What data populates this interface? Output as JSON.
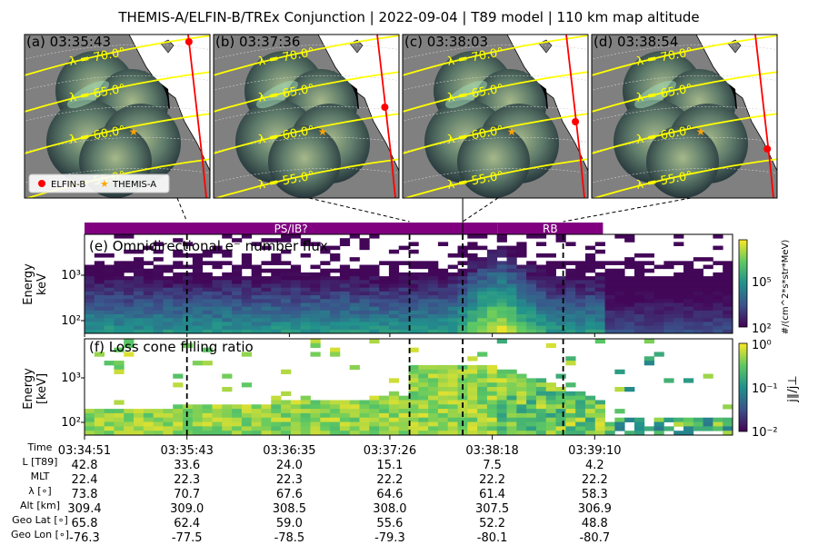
{
  "title": "THEMIS-A/ELFIN-B/TREx Conjunction | 2022-09-04 | T89 model | 110 km map altitude",
  "colors": {
    "purple": "#800080",
    "lat_line": "#ffff00",
    "elfin": "#ff0000",
    "themis": "#ffa500",
    "land": "#ffffff",
    "bg": "#808080"
  },
  "map_panels": [
    {
      "label": "(a) 03:35:43",
      "elfin_y": 0.04,
      "themis": true
    },
    {
      "label": "(b) 03:37:36",
      "elfin_y": 0.4,
      "themis": true
    },
    {
      "label": "(c) 03:38:03",
      "elfin_y": 0.48,
      "themis": true
    },
    {
      "label": "(d) 03:38:54",
      "elfin_y": 0.63,
      "themis": true
    }
  ],
  "lat_labels": [
    "λ = 70.0°",
    "λ = 65.0°",
    "λ = 60.0°",
    "λ = 55.0°"
  ],
  "legend": {
    "elfin": "ELFIN-B",
    "themis": "THEMIS-A"
  },
  "regions": [
    {
      "label": "PS/IB?",
      "start": 0.0,
      "end": 0.637
    },
    {
      "label": "RB",
      "start": 0.637,
      "end": 0.8
    }
  ],
  "panel_e": {
    "title": "(e) Omnidirectional e⁻ number flux",
    "ylabel_line1": "Energy",
    "ylabel_line2": "keV",
    "yticks": [
      "10³",
      "10²"
    ],
    "cbar_ticks": [
      "10⁵",
      "10²"
    ],
    "cbar_label": "#/(cm^2*s*str*MeV)"
  },
  "panel_f": {
    "title": "(f) Loss cone filling ratio",
    "ylabel_line1": "Energy",
    "ylabel_line2": "[keV]",
    "yticks": [
      "10³",
      "10²"
    ],
    "cbar_ticks": [
      "10⁰",
      "10⁻¹",
      "10⁻²"
    ],
    "cbar_label": "j∥/j⊥"
  },
  "vlines": [
    "03:35:43",
    "03:37:36",
    "03:38:03",
    "03:38:54"
  ],
  "table": {
    "row_labels": [
      "Time",
      "L [T89]",
      "MLT",
      "λ [∘]",
      "Alt [km]",
      "Geo Lat [∘]",
      "Geo Lon [∘]"
    ],
    "columns": [
      [
        "03:34:51",
        "42.8",
        "22.4",
        "73.8",
        "309.4",
        "65.8",
        "-76.3"
      ],
      [
        "03:35:43",
        "33.6",
        "22.3",
        "70.7",
        "309.0",
        "62.4",
        "-77.5"
      ],
      [
        "03:36:35",
        "24.0",
        "22.3",
        "67.6",
        "308.5",
        "59.0",
        "-78.5"
      ],
      [
        "03:37:26",
        "15.1",
        "22.2",
        "64.6",
        "308.0",
        "55.6",
        "-79.3"
      ],
      [
        "03:38:18",
        "7.5",
        "22.2",
        "61.4",
        "307.5",
        "52.2",
        "-80.1"
      ],
      [
        "03:39:10",
        "4.2",
        "22.2",
        "58.3",
        "306.9",
        "48.8",
        "-80.7"
      ]
    ]
  },
  "chart_data": {
    "type": "heatmap",
    "x_time_ticks": [
      "03:34:51",
      "03:35:43",
      "03:36:35",
      "03:37:26",
      "03:38:18",
      "03:39:10"
    ],
    "x_range": [
      "03:34:51",
      "03:40:20"
    ],
    "y_range_keV": [
      50,
      7000
    ],
    "y_scale": "log",
    "panels": [
      {
        "name": "(e) Omnidirectional e⁻ number flux",
        "colormap": "viridis",
        "clim": [
          100,
          5000000
        ],
        "cscale": "log"
      },
      {
        "name": "(f) Loss cone filling ratio",
        "colormap": "viridis",
        "clim": [
          0.01,
          1
        ],
        "cscale": "log"
      }
    ],
    "vertical_markers": [
      "03:35:43",
      "03:37:36",
      "03:38:03",
      "03:38:54"
    ]
  }
}
